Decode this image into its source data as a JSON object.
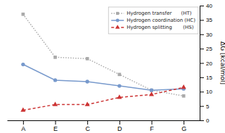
{
  "chart_data": {
    "type": "line",
    "categories": [
      "A",
      "E",
      "C",
      "D",
      "F",
      "G"
    ],
    "series": [
      {
        "name": "Hydrogen transfer      (HT)",
        "color": "#aaaaaa",
        "values": [
          37.0,
          22.0,
          21.5,
          16.0,
          10.5,
          8.5
        ],
        "marker": "square",
        "line_style": "dotted"
      },
      {
        "name": "Hydrogen coordination (HC)",
        "color": "#7799cc",
        "values": [
          19.5,
          14.0,
          13.5,
          12.0,
          10.5,
          11.0
        ],
        "marker": "circle",
        "line_style": "solid"
      },
      {
        "name": "Hydrogen splitting       (HS)",
        "color": "#cc3333",
        "values": [
          3.5,
          5.5,
          5.5,
          8.0,
          9.0,
          11.5
        ],
        "marker": "triangle",
        "line_style": "dashed"
      }
    ],
    "ylabel": "ΔG [kcal/mol]",
    "ylim": [
      0,
      40
    ],
    "yticks": [
      0,
      5,
      10,
      15,
      20,
      25,
      30,
      35,
      40
    ],
    "legend": "upper right"
  }
}
